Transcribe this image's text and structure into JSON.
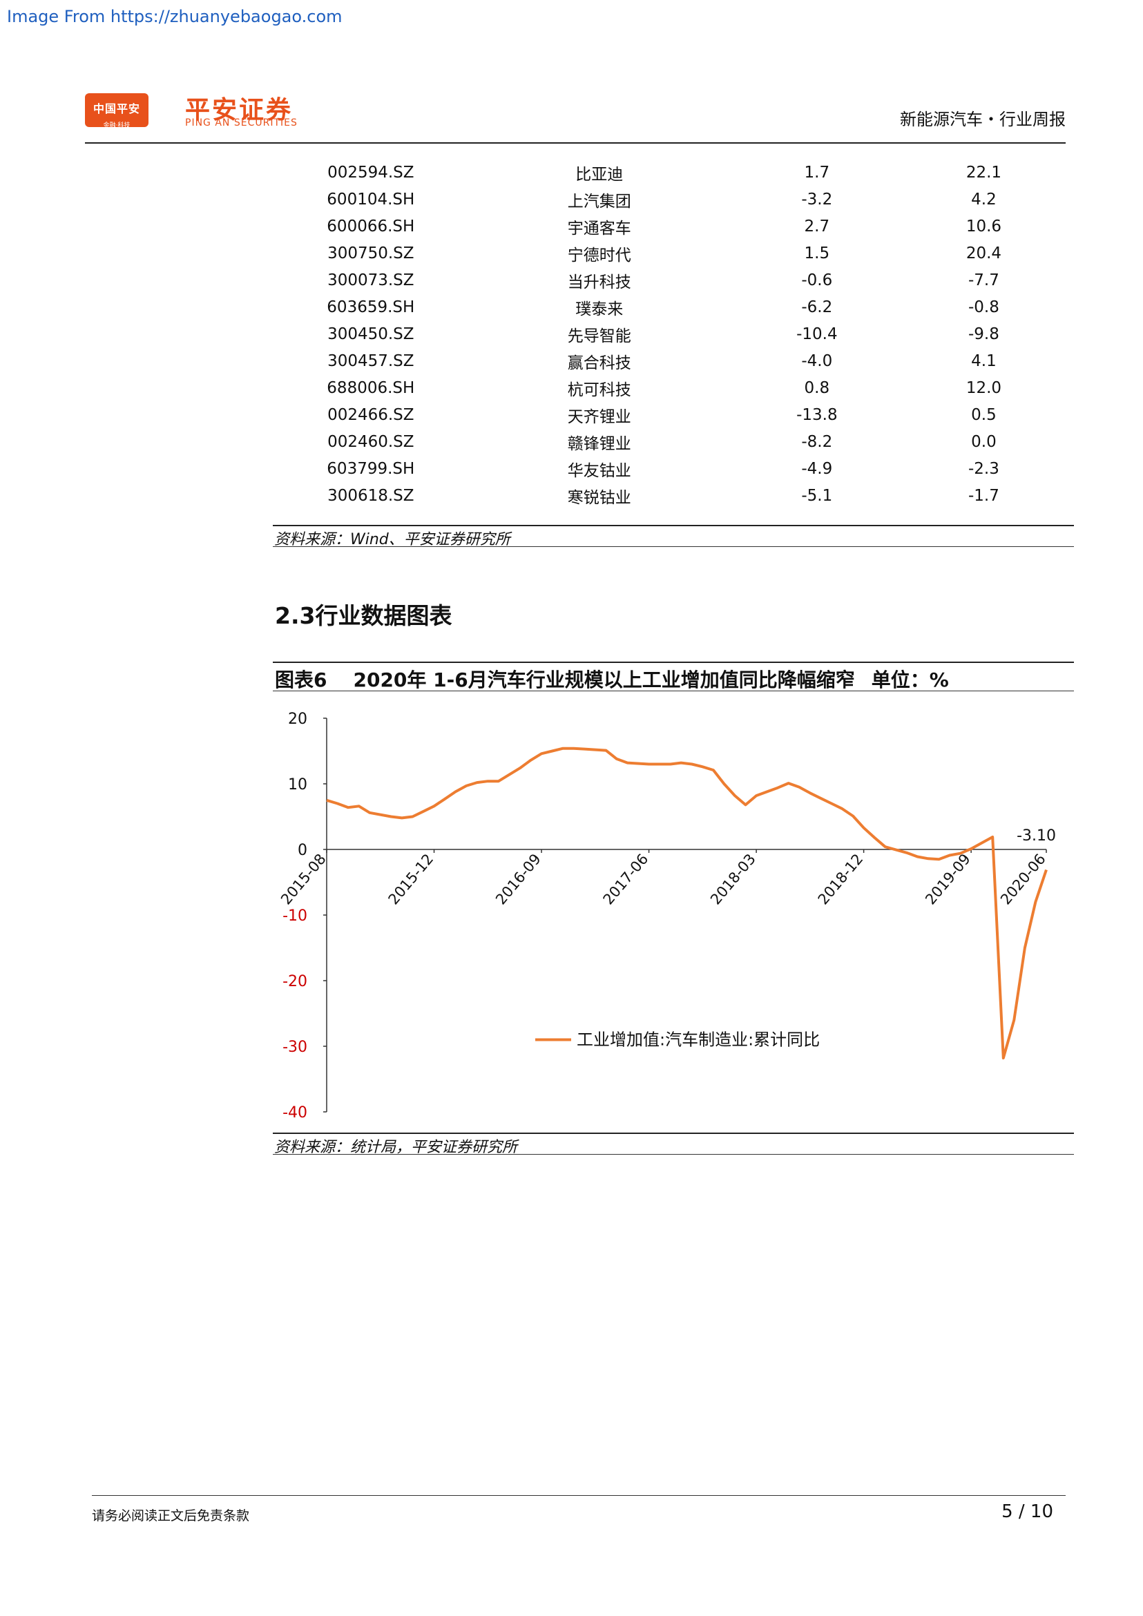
{
  "watermark": "Image From https://zhuanyebaogao.com",
  "header": {
    "logo_text": "中国平安",
    "logo_sub": "金融·科技",
    "brand_cn": "平安证券",
    "brand_en": "PING AN SECURITIES",
    "report_type": "新能源汽车・行业周报"
  },
  "stock_table": {
    "rows": [
      {
        "code": "002594.SZ",
        "name": "比亚迪",
        "v1": "1.7",
        "v2": "22.1"
      },
      {
        "code": "600104.SH",
        "name": "上汽集团",
        "v1": "-3.2",
        "v2": "4.2"
      },
      {
        "code": "600066.SH",
        "name": "宇通客车",
        "v1": "2.7",
        "v2": "10.6"
      },
      {
        "code": "300750.SZ",
        "name": "宁德时代",
        "v1": "1.5",
        "v2": "20.4"
      },
      {
        "code": "300073.SZ",
        "name": "当升科技",
        "v1": "-0.6",
        "v2": "-7.7"
      },
      {
        "code": "603659.SH",
        "name": "璞泰来",
        "v1": "-6.2",
        "v2": "-0.8"
      },
      {
        "code": "300450.SZ",
        "name": "先导智能",
        "v1": "-10.4",
        "v2": "-9.8"
      },
      {
        "code": "300457.SZ",
        "name": "赢合科技",
        "v1": "-4.0",
        "v2": "4.1"
      },
      {
        "code": "688006.SH",
        "name": "杭可科技",
        "v1": "0.8",
        "v2": "12.0"
      },
      {
        "code": "002466.SZ",
        "name": "天齐锂业",
        "v1": "-13.8",
        "v2": "0.5"
      },
      {
        "code": "002460.SZ",
        "name": "赣锋锂业",
        "v1": "-8.2",
        "v2": "0.0"
      },
      {
        "code": "603799.SH",
        "name": "华友钴业",
        "v1": "-4.9",
        "v2": "-2.3"
      },
      {
        "code": "300618.SZ",
        "name": "寒锐钴业",
        "v1": "-5.1",
        "v2": "-1.7"
      }
    ],
    "source": "资料来源：Wind、平安证券研究所"
  },
  "section_title": "2.3行业数据图表",
  "figure": {
    "label": "图表6",
    "title": "2020年 1-6月汽车行业规模以上工业增加值同比降幅缩窄",
    "unit": "单位：%",
    "source": "资料来源：统计局，平安证券研究所"
  },
  "chart_data": {
    "type": "line",
    "ylim": [
      -40,
      20
    ],
    "yticks": [
      20,
      10,
      0,
      -10,
      -20,
      -30,
      -40
    ],
    "xtick_labels": [
      "2015-08",
      "2015-12",
      "2016-09",
      "2017-06",
      "2018-03",
      "2018-12",
      "2019-09",
      "2020-06"
    ],
    "legend_position": "center",
    "end_label": "-3.10",
    "series": [
      {
        "name": "工业增加值:汽车制造业:累计同比",
        "color": "#ed7d31",
        "points": [
          [
            "2015-08",
            7.5
          ],
          [
            "2015-09",
            7.0
          ],
          [
            "2015-10",
            6.4
          ],
          [
            "2015-11",
            6.6
          ],
          [
            "2015-12",
            5.6
          ],
          [
            "2016-02",
            5.0
          ],
          [
            "2016-03",
            4.8
          ],
          [
            "2016-04",
            5.0
          ],
          [
            "2016-05",
            5.8
          ],
          [
            "2016-06",
            6.6
          ],
          [
            "2016-07",
            7.7
          ],
          [
            "2016-08",
            8.8
          ],
          [
            "2016-09",
            9.7
          ],
          [
            "2016-10",
            10.2
          ],
          [
            "2016-11",
            10.4
          ],
          [
            "2016-12",
            10.4
          ],
          [
            "2017-02",
            12.4
          ],
          [
            "2017-03",
            13.6
          ],
          [
            "2017-04",
            14.6
          ],
          [
            "2017-05",
            15.0
          ],
          [
            "2017-06",
            15.4
          ],
          [
            "2017-07",
            15.4
          ],
          [
            "2017-08",
            15.3
          ],
          [
            "2017-09",
            15.2
          ],
          [
            "2017-10",
            15.1
          ],
          [
            "2017-11",
            13.8
          ],
          [
            "2017-12",
            13.2
          ],
          [
            "2018-02",
            13.0
          ],
          [
            "2018-03",
            13.0
          ],
          [
            "2018-04",
            13.0
          ],
          [
            "2018-05",
            13.2
          ],
          [
            "2018-06",
            13.0
          ],
          [
            "2018-07",
            12.6
          ],
          [
            "2018-08",
            12.1
          ],
          [
            "2018-09",
            10.0
          ],
          [
            "2018-10",
            8.2
          ],
          [
            "2018-11",
            6.8
          ],
          [
            "2018-12",
            8.2
          ],
          [
            "2019-02",
            9.4
          ],
          [
            "2019-03",
            10.1
          ],
          [
            "2019-04",
            9.5
          ],
          [
            "2019-05",
            8.6
          ],
          [
            "2019-06",
            7.8
          ],
          [
            "2019-07",
            7.0
          ],
          [
            "2019-08",
            6.2
          ],
          [
            "2019-09",
            5.1
          ],
          [
            "2019-10",
            3.3
          ],
          [
            "2019-11",
            1.8
          ],
          [
            "2019-12",
            0.4
          ],
          [
            "2020-02",
            -0.5
          ],
          [
            "2020-03",
            -1.1
          ],
          [
            "2020-04",
            -1.4
          ],
          [
            "2020-05",
            -1.5
          ],
          [
            "2020-06",
            -0.9
          ],
          [
            "2020-07",
            -0.6
          ],
          [
            "2020-08",
            0.1
          ],
          [
            "2020-09",
            1.0
          ],
          [
            "2020-10",
            1.9
          ],
          [
            "2020-11",
            -31.8
          ],
          [
            "2020-12",
            -26.0
          ],
          [
            "2021-01",
            -15.0
          ],
          [
            "2021-02",
            -8.0
          ],
          [
            "2021-03",
            -3.1
          ]
        ]
      }
    ]
  },
  "footer": {
    "disclaimer": "请务必阅读正文后免责条款",
    "page": "5 / 10"
  }
}
